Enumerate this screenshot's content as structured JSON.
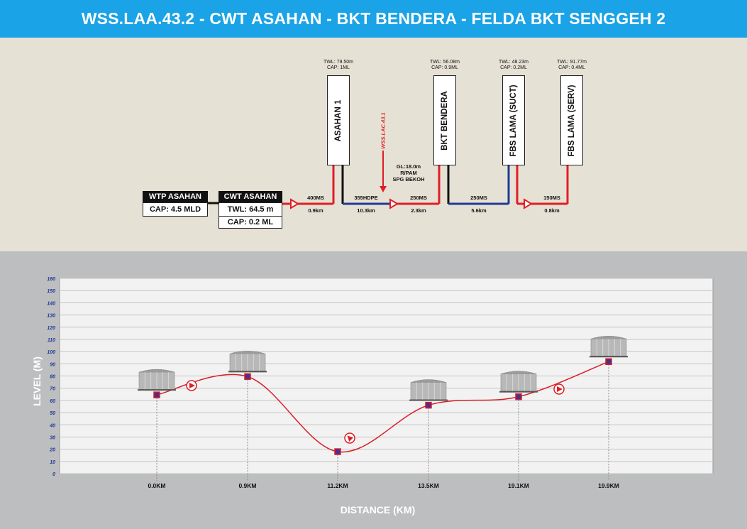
{
  "header": {
    "title": "WSS.LAA.43.2 - CWT ASAHAN - BKT BENDERA - FELDA BKT SENGGEH 2"
  },
  "wtp": {
    "name": "WTP ASAHAN",
    "cap": "CAP: 4.5 MLD"
  },
  "cwt": {
    "name": "CWT ASAHAN",
    "twl": "TWL: 64.5 m",
    "cap": "CAP: 0.2 ML"
  },
  "tanks": [
    {
      "name": "ASAHAN 1",
      "twl": "TWL: 79.50m",
      "cap": "CAP: 1ML"
    },
    {
      "name": "BKT BENDERA",
      "twl": "TWL: 56.08m",
      "cap": "CAP: 0.9ML"
    },
    {
      "name": "FBS LAMA (SUCT)",
      "twl": "TWL: 48.23m",
      "cap": "CAP: 0.2ML"
    },
    {
      "name": "FBS LAMA (SERV)",
      "twl": "TWL: 91.77m",
      "cap": "CAP: 0.4ML"
    }
  ],
  "pipes": [
    {
      "spec": "400MS",
      "length": "0.9km"
    },
    {
      "spec": "355HDPE",
      "length": "10.3km"
    },
    {
      "spec": "250MS",
      "length": "2.3km"
    },
    {
      "spec": "250MS",
      "length": "5.6km"
    },
    {
      "spec": "150MS",
      "length": "0.8km"
    }
  ],
  "connection": {
    "label": "WSS.LAC.43.1",
    "gl": "GL:18.0m",
    "rpam": "R/PAM",
    "place": "SPG BEKOH"
  },
  "colors": {
    "header": "#1aa3e6",
    "pipe_ms": "#e01e26",
    "pipe_hdpe": "#1f3a93",
    "marker": "#4b2d8f",
    "line": "#d91f26"
  },
  "chart_data": {
    "type": "line",
    "xlabel": "DISTANCE (KM)",
    "ylabel": "LEVEL (M)",
    "ylim": [
      0,
      160
    ],
    "yticks": [
      0,
      10,
      20,
      30,
      40,
      50,
      60,
      70,
      80,
      90,
      100,
      110,
      120,
      130,
      140,
      150,
      160
    ],
    "categories": [
      "0.0KM",
      "0.9KM",
      "11.2KM",
      "13.5KM",
      "19.1KM",
      "19.9KM"
    ],
    "values": [
      64.5,
      79.5,
      18.0,
      56.08,
      63.0,
      91.77
    ],
    "grid": true
  }
}
